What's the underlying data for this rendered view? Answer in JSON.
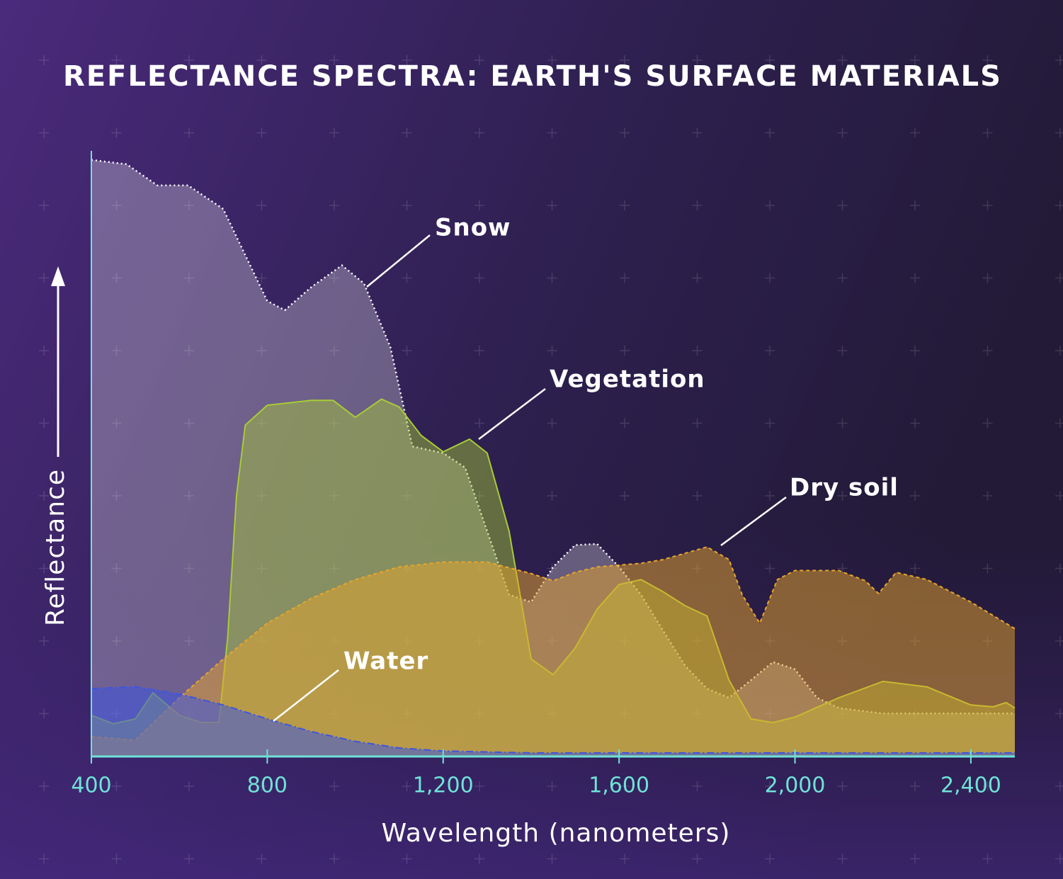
{
  "chart_data": {
    "type": "area",
    "title": "REFLECTANCE SPECTRA: EARTH'S SURFACE MATERIALS",
    "x_label": "Wavelength (nanometers)",
    "y_label": "Reflectance",
    "xlim": [
      400,
      2500
    ],
    "ylim": [
      0,
      100
    ],
    "xticks": [
      400,
      800,
      {
        "value": 1200,
        "label": "1,200"
      },
      {
        "value": 1600,
        "label": "1,600"
      },
      {
        "value": 2000,
        "label": "2,000"
      },
      {
        "value": 2400,
        "label": "2,400"
      }
    ],
    "series": [
      {
        "name": "Snow",
        "color": "#ffffff",
        "x": [
          400,
          480,
          550,
          620,
          700,
          750,
          800,
          840,
          900,
          970,
          1020,
          1080,
          1130,
          1200,
          1250,
          1300,
          1350,
          1400,
          1450,
          1500,
          1550,
          1600,
          1650,
          1700,
          1750,
          1800,
          1850,
          1900,
          1950,
          2000,
          2050,
          2100,
          2200,
          2500
        ],
        "values": [
          98.5,
          97.8,
          94.3,
          94.3,
          90.4,
          82.8,
          75.2,
          73.7,
          77.5,
          81.1,
          78.1,
          67.6,
          51.2,
          50.1,
          47.7,
          37.2,
          26.7,
          25.5,
          31.3,
          34.9,
          35.1,
          31.3,
          26.7,
          20.8,
          15,
          11.2,
          9.7,
          12.6,
          15.6,
          14.4,
          9.7,
          8,
          7.1,
          7.1
        ]
      },
      {
        "name": "Vegetation",
        "color": "#a8cc35",
        "x": [
          400,
          450,
          500,
          540,
          600,
          650,
          690,
          710,
          730,
          750,
          800,
          900,
          950,
          1000,
          1060,
          1100,
          1150,
          1200,
          1260,
          1300,
          1350,
          1400,
          1450,
          1500,
          1550,
          1600,
          1650,
          1700,
          1750,
          1800,
          1850,
          1900,
          1950,
          2000,
          2100,
          2200,
          2300,
          2400,
          2450,
          2480,
          2500
        ],
        "values": [
          6.8,
          5.4,
          6.2,
          10.5,
          6.8,
          5.6,
          5.6,
          19.6,
          43,
          54.7,
          58,
          58.8,
          58.8,
          56,
          59,
          57.7,
          53,
          50.3,
          52.4,
          50.1,
          37.2,
          16.1,
          13.5,
          17.9,
          24.3,
          28.4,
          29.2,
          27.2,
          24.9,
          23.2,
          12.6,
          6.2,
          5.6,
          6.5,
          9.7,
          12.4,
          11.5,
          8.5,
          8.2,
          8.9,
          8
        ]
      },
      {
        "name": "Dry soil",
        "color": "#e8a62c",
        "x": [
          400,
          500,
          600,
          700,
          800,
          900,
          1000,
          1100,
          1200,
          1300,
          1400,
          1450,
          1500,
          1550,
          1650,
          1700,
          1800,
          1850,
          1880,
          1920,
          1960,
          2000,
          2100,
          2160,
          2190,
          2230,
          2300,
          2400,
          2500
        ],
        "values": [
          3.3,
          2.7,
          9.7,
          16.1,
          22,
          26.1,
          29.2,
          31.3,
          32.1,
          32.1,
          30.2,
          29,
          30.4,
          31.3,
          31.9,
          32.5,
          34.6,
          32.5,
          26.7,
          22,
          29.2,
          30.7,
          30.7,
          29,
          26.9,
          30.4,
          29.2,
          25.5,
          21.1
        ]
      },
      {
        "name": "Water",
        "color": "#3d55e0",
        "x": [
          400,
          500,
          600,
          700,
          800,
          900,
          1000,
          1100,
          1200,
          1400,
          2500
        ],
        "values": [
          11.2,
          11.5,
          10.3,
          8.5,
          6.2,
          4.1,
          2.5,
          1.4,
          0.9,
          0.6,
          0.6
        ]
      }
    ]
  }
}
